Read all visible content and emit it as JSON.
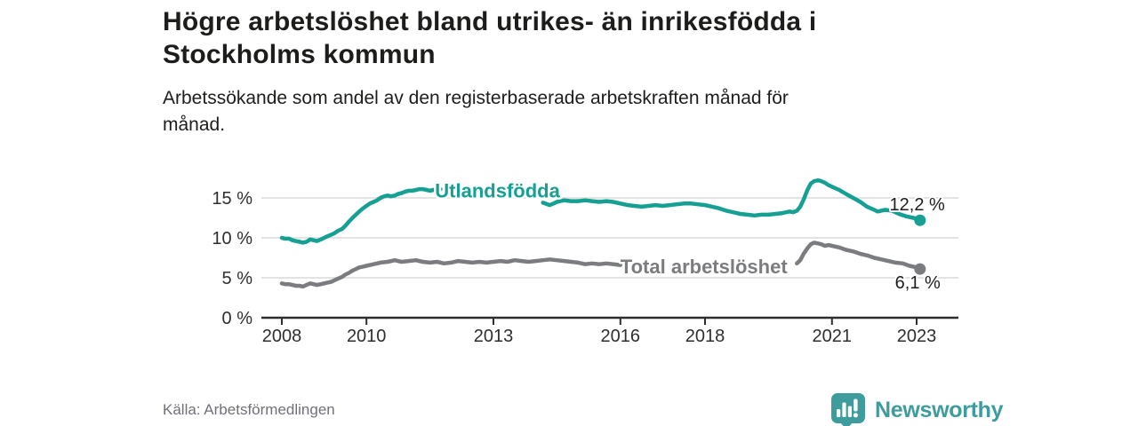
{
  "header": {
    "title": "Högre arbetslöshet bland utrikes- än inrikesfödda i\nStockholms kommun",
    "subtitle": "Arbetssökande som andel av den registerbaserade arbetskraften månad för\nmånad."
  },
  "footer": {
    "source": "Källa: Arbetsförmedlingen",
    "brand": "Newsworthy"
  },
  "colors": {
    "foreign_series": "#16a094",
    "total_series": "#7b7c80",
    "brand_teal": "#3f9c9d",
    "grid": "#dadada",
    "axis": "#2e2e30",
    "title_text": "#1d1d1b",
    "source_text": "#70707a"
  },
  "chart_data": {
    "type": "line",
    "title": "Högre arbetslöshet bland utrikes- än inrikesfödda i Stockholms kommun",
    "subtitle": "Arbetssökande som andel av den registerbaserade arbetskraften månad för månad.",
    "unit": "%",
    "xlim": [
      2007.5,
      2023.95
    ],
    "ylim": [
      0,
      18.3
    ],
    "grid": "horizontal",
    "legend_position": "inline-labels",
    "x_ticks": [
      {
        "value": 2008,
        "label": "2008"
      },
      {
        "value": 2010,
        "label": "2010"
      },
      {
        "value": 2013,
        "label": "2013"
      },
      {
        "value": 2016,
        "label": "2016"
      },
      {
        "value": 2018,
        "label": "2018"
      },
      {
        "value": 2021,
        "label": "2021"
      },
      {
        "value": 2023,
        "label": "2023"
      }
    ],
    "y_ticks": [
      {
        "value": 0,
        "label": "0 %"
      },
      {
        "value": 5,
        "label": "5 %"
      },
      {
        "value": 10,
        "label": "10 %"
      },
      {
        "value": 15,
        "label": "15 %"
      }
    ],
    "series": [
      {
        "id": "utlandsfodda",
        "name": "Utlandsfödda",
        "color": "#16a094",
        "end_label": "12,2 %",
        "end_value": 12.2,
        "label_at": [
          2011.62,
          15.08
        ],
        "points": [
          [
            2008.0,
            10.0
          ],
          [
            2008.08,
            9.9
          ],
          [
            2008.17,
            9.9
          ],
          [
            2008.25,
            9.7
          ],
          [
            2008.33,
            9.6
          ],
          [
            2008.42,
            9.5
          ],
          [
            2008.5,
            9.4
          ],
          [
            2008.58,
            9.5
          ],
          [
            2008.67,
            9.8
          ],
          [
            2008.75,
            9.7
          ],
          [
            2008.83,
            9.6
          ],
          [
            2008.92,
            9.8
          ],
          [
            2009.0,
            10.0
          ],
          [
            2009.08,
            10.2
          ],
          [
            2009.17,
            10.4
          ],
          [
            2009.25,
            10.6
          ],
          [
            2009.33,
            10.9
          ],
          [
            2009.42,
            11.1
          ],
          [
            2009.5,
            11.5
          ],
          [
            2009.58,
            12.0
          ],
          [
            2009.67,
            12.5
          ],
          [
            2009.75,
            12.9
          ],
          [
            2009.83,
            13.3
          ],
          [
            2009.92,
            13.7
          ],
          [
            2010.0,
            14.0
          ],
          [
            2010.08,
            14.3
          ],
          [
            2010.17,
            14.5
          ],
          [
            2010.25,
            14.7
          ],
          [
            2010.33,
            15.0
          ],
          [
            2010.42,
            15.2
          ],
          [
            2010.5,
            15.3
          ],
          [
            2010.58,
            15.2
          ],
          [
            2010.67,
            15.3
          ],
          [
            2010.75,
            15.5
          ],
          [
            2010.83,
            15.6
          ],
          [
            2010.92,
            15.8
          ],
          [
            2011.0,
            15.9
          ],
          [
            2011.08,
            15.9
          ],
          [
            2011.17,
            16.0
          ],
          [
            2011.25,
            16.1
          ],
          [
            2011.33,
            16.1
          ],
          [
            2011.42,
            16.0
          ],
          [
            2011.5,
            15.9
          ],
          [
            2011.58,
            16.0
          ],
          [
            2011.67,
            16.1
          ],
          [
            2011.75,
            16.1
          ],
          [
            2012.0,
            16.0
          ],
          [
            2012.25,
            16.0
          ],
          [
            2012.5,
            15.9
          ],
          [
            2012.75,
            15.7
          ],
          [
            2013.0,
            15.5
          ],
          [
            2013.25,
            15.2
          ],
          [
            2013.5,
            15.0
          ],
          [
            2013.75,
            14.8
          ],
          [
            2014.0,
            14.7
          ],
          [
            2014.17,
            14.4
          ],
          [
            2014.33,
            14.1
          ],
          [
            2014.42,
            14.3
          ],
          [
            2014.5,
            14.5
          ],
          [
            2014.58,
            14.6
          ],
          [
            2014.67,
            14.7
          ],
          [
            2014.83,
            14.6
          ],
          [
            2015.0,
            14.6
          ],
          [
            2015.17,
            14.7
          ],
          [
            2015.33,
            14.6
          ],
          [
            2015.5,
            14.5
          ],
          [
            2015.67,
            14.6
          ],
          [
            2015.83,
            14.5
          ],
          [
            2016.0,
            14.3
          ],
          [
            2016.17,
            14.1
          ],
          [
            2016.33,
            14.0
          ],
          [
            2016.5,
            13.9
          ],
          [
            2016.67,
            14.0
          ],
          [
            2016.83,
            14.1
          ],
          [
            2017.0,
            14.0
          ],
          [
            2017.17,
            14.1
          ],
          [
            2017.33,
            14.2
          ],
          [
            2017.5,
            14.3
          ],
          [
            2017.67,
            14.3
          ],
          [
            2017.83,
            14.2
          ],
          [
            2018.0,
            14.1
          ],
          [
            2018.17,
            13.9
          ],
          [
            2018.33,
            13.7
          ],
          [
            2018.5,
            13.4
          ],
          [
            2018.67,
            13.2
          ],
          [
            2018.83,
            13.0
          ],
          [
            2019.0,
            12.9
          ],
          [
            2019.17,
            12.8
          ],
          [
            2019.33,
            12.9
          ],
          [
            2019.5,
            12.9
          ],
          [
            2019.67,
            13.0
          ],
          [
            2019.83,
            13.1
          ],
          [
            2020.0,
            13.3
          ],
          [
            2020.08,
            13.2
          ],
          [
            2020.17,
            13.4
          ],
          [
            2020.25,
            13.9
          ],
          [
            2020.33,
            14.8
          ],
          [
            2020.42,
            16.0
          ],
          [
            2020.5,
            16.8
          ],
          [
            2020.58,
            17.1
          ],
          [
            2020.67,
            17.2
          ],
          [
            2020.75,
            17.1
          ],
          [
            2020.83,
            16.9
          ],
          [
            2020.92,
            16.6
          ],
          [
            2021.0,
            16.4
          ],
          [
            2021.17,
            16.0
          ],
          [
            2021.33,
            15.5
          ],
          [
            2021.5,
            15.0
          ],
          [
            2021.67,
            14.5
          ],
          [
            2021.83,
            13.9
          ],
          [
            2022.0,
            13.5
          ],
          [
            2022.08,
            13.3
          ],
          [
            2022.25,
            13.5
          ],
          [
            2022.42,
            13.4
          ],
          [
            2022.58,
            13.0
          ],
          [
            2022.75,
            12.7
          ],
          [
            2022.92,
            12.5
          ],
          [
            2023.0,
            12.4
          ],
          [
            2023.08,
            12.2
          ]
        ]
      },
      {
        "id": "total-arbetsloshet",
        "name": "Total arbetslöshet",
        "color": "#7b7c80",
        "end_label": "6,1 %",
        "end_value": 6.1,
        "label_at": [
          2016.0,
          5.55
        ],
        "points": [
          [
            2008.0,
            4.3
          ],
          [
            2008.08,
            4.2
          ],
          [
            2008.17,
            4.2
          ],
          [
            2008.25,
            4.1
          ],
          [
            2008.33,
            4.0
          ],
          [
            2008.42,
            4.0
          ],
          [
            2008.5,
            3.9
          ],
          [
            2008.58,
            4.1
          ],
          [
            2008.67,
            4.3
          ],
          [
            2008.75,
            4.2
          ],
          [
            2008.83,
            4.1
          ],
          [
            2008.92,
            4.2
          ],
          [
            2009.0,
            4.3
          ],
          [
            2009.08,
            4.4
          ],
          [
            2009.17,
            4.5
          ],
          [
            2009.25,
            4.7
          ],
          [
            2009.33,
            4.9
          ],
          [
            2009.42,
            5.1
          ],
          [
            2009.5,
            5.4
          ],
          [
            2009.58,
            5.6
          ],
          [
            2009.67,
            5.9
          ],
          [
            2009.75,
            6.1
          ],
          [
            2009.83,
            6.3
          ],
          [
            2009.92,
            6.4
          ],
          [
            2010.0,
            6.5
          ],
          [
            2010.17,
            6.7
          ],
          [
            2010.33,
            6.9
          ],
          [
            2010.5,
            7.0
          ],
          [
            2010.67,
            7.2
          ],
          [
            2010.83,
            7.0
          ],
          [
            2011.0,
            7.1
          ],
          [
            2011.17,
            7.2
          ],
          [
            2011.33,
            7.0
          ],
          [
            2011.5,
            6.9
          ],
          [
            2011.67,
            7.0
          ],
          [
            2011.83,
            6.8
          ],
          [
            2012.0,
            6.9
          ],
          [
            2012.17,
            7.1
          ],
          [
            2012.33,
            7.0
          ],
          [
            2012.5,
            6.9
          ],
          [
            2012.67,
            7.0
          ],
          [
            2012.83,
            6.9
          ],
          [
            2013.0,
            7.0
          ],
          [
            2013.17,
            7.1
          ],
          [
            2013.33,
            7.0
          ],
          [
            2013.5,
            7.2
          ],
          [
            2013.67,
            7.1
          ],
          [
            2013.83,
            7.0
          ],
          [
            2014.0,
            7.1
          ],
          [
            2014.17,
            7.2
          ],
          [
            2014.33,
            7.3
          ],
          [
            2014.5,
            7.2
          ],
          [
            2014.67,
            7.1
          ],
          [
            2014.83,
            7.0
          ],
          [
            2015.0,
            6.9
          ],
          [
            2015.17,
            6.7
          ],
          [
            2015.33,
            6.8
          ],
          [
            2015.5,
            6.7
          ],
          [
            2015.67,
            6.8
          ],
          [
            2015.83,
            6.7
          ],
          [
            2016.0,
            6.6
          ],
          [
            2016.25,
            6.6
          ],
          [
            2016.5,
            6.5
          ],
          [
            2016.75,
            6.5
          ],
          [
            2017.0,
            6.4
          ],
          [
            2017.25,
            6.4
          ],
          [
            2017.5,
            6.3
          ],
          [
            2017.75,
            6.3
          ],
          [
            2018.0,
            6.2
          ],
          [
            2018.25,
            6.2
          ],
          [
            2018.5,
            6.2
          ],
          [
            2018.75,
            6.2
          ],
          [
            2019.0,
            6.2
          ],
          [
            2019.25,
            6.3
          ],
          [
            2019.5,
            6.3
          ],
          [
            2019.75,
            6.4
          ],
          [
            2020.0,
            6.5
          ],
          [
            2020.08,
            6.6
          ],
          [
            2020.17,
            6.8
          ],
          [
            2020.25,
            7.2
          ],
          [
            2020.33,
            8.0
          ],
          [
            2020.42,
            8.7
          ],
          [
            2020.5,
            9.2
          ],
          [
            2020.58,
            9.4
          ],
          [
            2020.67,
            9.3
          ],
          [
            2020.75,
            9.2
          ],
          [
            2020.83,
            9.0
          ],
          [
            2020.92,
            9.1
          ],
          [
            2021.0,
            9.0
          ],
          [
            2021.17,
            8.8
          ],
          [
            2021.33,
            8.5
          ],
          [
            2021.5,
            8.3
          ],
          [
            2021.67,
            8.0
          ],
          [
            2021.83,
            7.8
          ],
          [
            2022.0,
            7.5
          ],
          [
            2022.17,
            7.3
          ],
          [
            2022.33,
            7.1
          ],
          [
            2022.5,
            6.9
          ],
          [
            2022.67,
            6.8
          ],
          [
            2022.83,
            6.5
          ],
          [
            2023.0,
            6.3
          ],
          [
            2023.08,
            6.1
          ]
        ]
      }
    ]
  }
}
